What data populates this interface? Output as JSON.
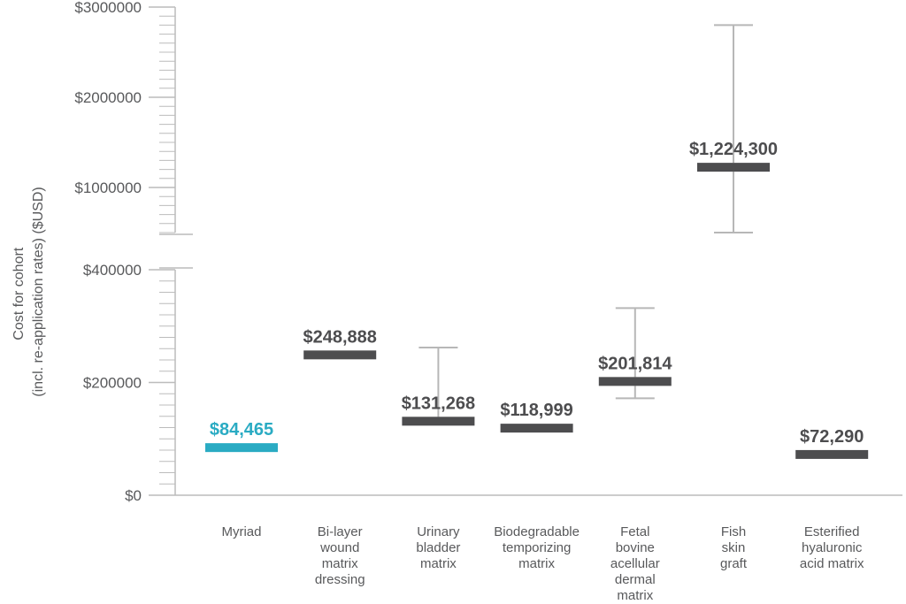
{
  "chart_data": {
    "type": "bar",
    "ylabel_lines": [
      "Cost for cohort",
      "(incl. re-application rates) ($USD)"
    ],
    "y_axis": {
      "broken": true,
      "lower_range": [
        0,
        400000
      ],
      "upper_range": [
        500000,
        3000000
      ],
      "lower_ticks": [
        {
          "value": 0,
          "label": "$0"
        },
        {
          "value": 200000,
          "label": "$200000"
        },
        {
          "value": 400000,
          "label": "$400000"
        }
      ],
      "upper_ticks": [
        {
          "value": 1000000,
          "label": "$1000000"
        },
        {
          "value": 2000000,
          "label": "$2000000"
        },
        {
          "value": 3000000,
          "label": "$3000000"
        }
      ]
    },
    "categories": [
      {
        "lines": [
          "Myriad"
        ],
        "value": 84465,
        "label": "$84,465",
        "highlight": true
      },
      {
        "lines": [
          "Bi-layer",
          "wound",
          "matrix",
          "dressing"
        ],
        "value": 248888,
        "label": "$248,888",
        "highlight": false
      },
      {
        "lines": [
          "Urinary",
          "bladder",
          "matrix"
        ],
        "value": 131268,
        "label": "$131,268",
        "error_high": 262000,
        "highlight": false
      },
      {
        "lines": [
          "Biodegradable",
          "temporizing",
          "matrix"
        ],
        "value": 118999,
        "label": "$118,999",
        "highlight": false
      },
      {
        "lines": [
          "Fetal",
          "bovine",
          "acellular",
          "dermal",
          "matrix"
        ],
        "value": 201814,
        "label": "$201,814",
        "error_low": 172000,
        "error_high": 332000,
        "highlight": false
      },
      {
        "lines": [
          "Fish",
          "skin",
          "graft"
        ],
        "value": 1224300,
        "label": "$1,224,300",
        "error_low": 500000,
        "error_high": 2800000,
        "highlight": false
      },
      {
        "lines": [
          "Esterified",
          "hyaluronic",
          "acid matrix"
        ],
        "value": 72290,
        "label": "$72,290",
        "highlight": false
      }
    ],
    "colors": {
      "highlight": "#2aabc3",
      "bar": "#4d4d4f",
      "error": "#b7b7b7",
      "axis": "#bcbcbc"
    },
    "grid": false
  }
}
